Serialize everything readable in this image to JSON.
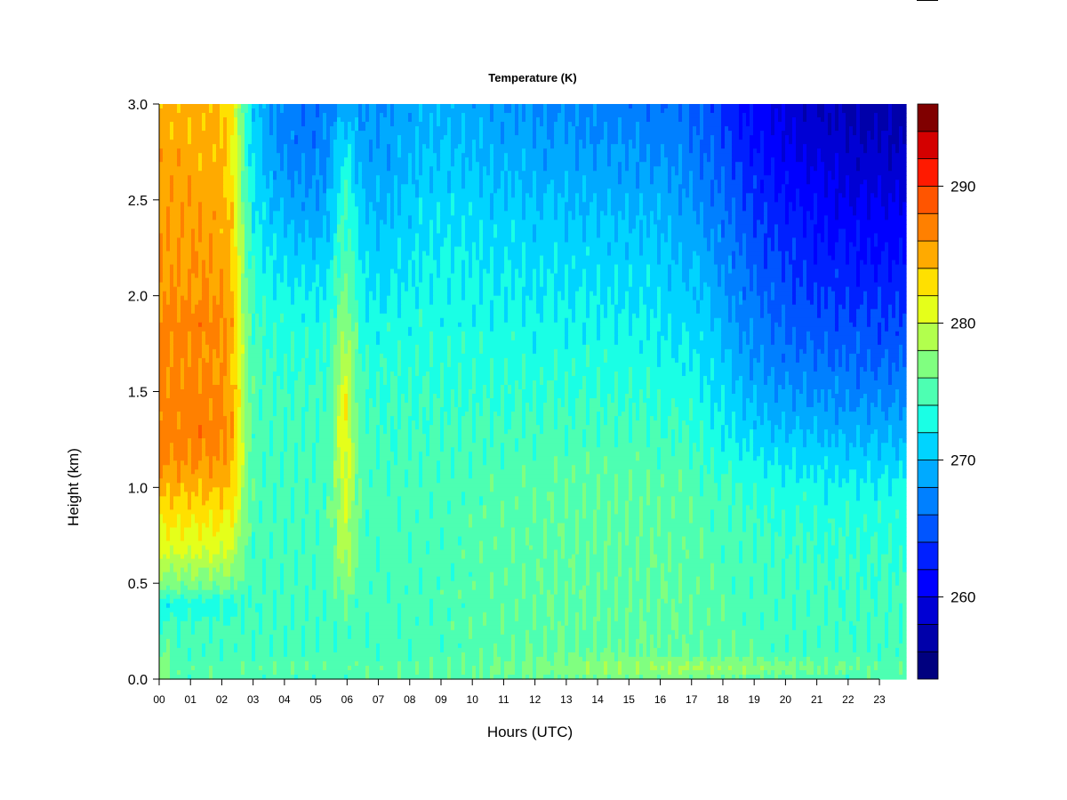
{
  "chart_data": {
    "type": "heatmap",
    "title": "Temperature (K)",
    "xlabel": "Hours (UTC)",
    "ylabel": "Height (km)",
    "x_ticks": [
      "00",
      "01",
      "02",
      "03",
      "04",
      "05",
      "06",
      "07",
      "08",
      "09",
      "10",
      "11",
      "12",
      "13",
      "14",
      "15",
      "16",
      "17",
      "18",
      "19",
      "20",
      "21",
      "22",
      "23"
    ],
    "xlim": [
      0,
      23.85
    ],
    "y_ticks": [
      "0.0",
      "0.5",
      "1.0",
      "1.5",
      "2.0",
      "2.5",
      "3.0"
    ],
    "ylim": [
      0,
      3.0
    ],
    "colorbar": {
      "range": [
        254,
        296
      ],
      "levels": 21,
      "step": 2,
      "tick_values": [
        260,
        270,
        280,
        290
      ],
      "tick_labels": [
        "260",
        "270",
        "280",
        "290"
      ],
      "colors": [
        "#00007f",
        "#0000aa",
        "#0000d4",
        "#0000ff",
        "#0020ff",
        "#0055ff",
        "#0080ff",
        "#00aaff",
        "#00d4ff",
        "#1affe5",
        "#4dffb2",
        "#80ff80",
        "#b2ff4d",
        "#e5ff1a",
        "#ffe000",
        "#ffaa00",
        "#ff8000",
        "#ff5500",
        "#ff1a00",
        "#d40000",
        "#800000"
      ]
    },
    "grid": false,
    "legend": "colorbar-right"
  }
}
